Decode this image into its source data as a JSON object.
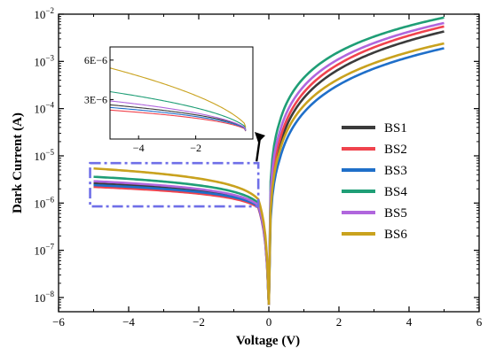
{
  "chart_data": {
    "type": "line",
    "xlabel": "Voltage (V)",
    "ylabel": "Dark Current (A)",
    "xlim": [
      -6,
      6
    ],
    "xticks": [
      "−6",
      "−4",
      "−2",
      "0",
      "2",
      "4",
      "6"
    ],
    "ylim": [
      5e-09,
      0.01
    ],
    "yscale": "log",
    "yticks": [
      {
        "exp": "-8"
      },
      {
        "exp": "-7"
      },
      {
        "exp": "-6"
      },
      {
        "exp": "-5"
      },
      {
        "exp": "-4"
      },
      {
        "exp": "-3"
      },
      {
        "exp": "-2"
      }
    ],
    "ytick_base": "10",
    "legend_position": "right",
    "series": [
      {
        "name": "BS1",
        "color": "#3b3b3b",
        "i_neg5": 2.6e-06,
        "i_neg03": 9e-07,
        "i_pos03": 1.5e-05,
        "i_pos5": 0.0043
      },
      {
        "name": "BS2",
        "color": "#f0434d",
        "i_neg5": 2.2e-06,
        "i_neg03": 8e-07,
        "i_pos03": 2e-05,
        "i_pos5": 0.0055
      },
      {
        "name": "BS3",
        "color": "#1f6fc9",
        "i_neg5": 2.4e-06,
        "i_neg03": 8.5e-07,
        "i_pos03": 8e-06,
        "i_pos5": 0.0019
      },
      {
        "name": "BS4",
        "color": "#1f9e76",
        "i_neg5": 3.6e-06,
        "i_neg03": 1e-06,
        "i_pos03": 5e-05,
        "i_pos5": 0.0085
      },
      {
        "name": "BS5",
        "color": "#b066dd",
        "i_neg5": 2.9e-06,
        "i_neg03": 9e-07,
        "i_pos03": 3e-05,
        "i_pos5": 0.0065
      },
      {
        "name": "BS6",
        "color": "#c9a21e",
        "i_neg5": 5.4e-06,
        "i_neg03": 1.2e-06,
        "i_pos03": 1.2e-05,
        "i_pos5": 0.0024
      }
    ],
    "inset": {
      "xlim": [
        -5,
        0
      ],
      "xticks": [
        "−4",
        "−2"
      ],
      "ylim": [
        0,
        7e-06
      ],
      "yticks": [
        "3E−6",
        "6E−6"
      ]
    },
    "zoom_box": {
      "xlim": [
        -5.1,
        -0.3
      ],
      "ylim": [
        8.5e-07,
        7e-06
      ]
    }
  }
}
